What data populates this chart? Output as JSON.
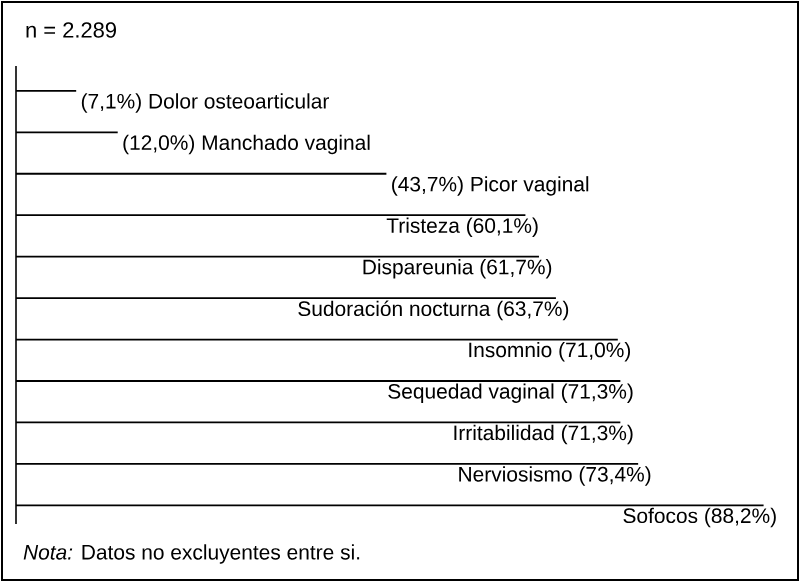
{
  "chart_data": {
    "type": "bar",
    "orientation": "horizontal",
    "title": "n = 2.289",
    "color": "#000000",
    "categories": [
      "Dolor osteoarticular",
      "Manchado vaginal",
      "Picor vaginal",
      "Tristeza",
      "Dispareunia",
      "Sudoración nocturna",
      "Insomnio",
      "Sequedad vaginal",
      "Irritabilidad",
      "Nerviosismo",
      "Sofocos"
    ],
    "values": [
      7.1,
      12.0,
      43.7,
      60.1,
      61.7,
      63.7,
      71.0,
      71.3,
      71.3,
      73.4,
      88.2
    ],
    "value_labels": [
      "(7,1%)",
      "(12,0%)",
      "(43,7%)",
      "(60,1%)",
      "(61,7%)",
      "(63,7%)",
      "(71,0%)",
      "(71,3%)",
      "(71,3%)",
      "(73,4%)",
      "(88,2%)"
    ],
    "annotations": [
      "*Nota:* Datos no excluyentes entre si."
    ]
  }
}
